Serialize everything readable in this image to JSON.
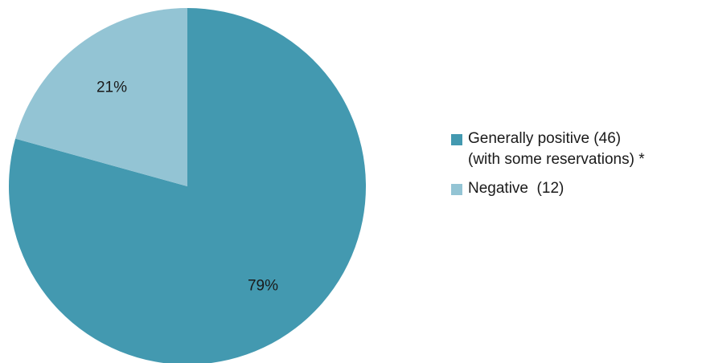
{
  "chart_data": {
    "type": "pie",
    "slices": [
      {
        "legend_lines": [
          "Generally positive (46)",
          "(with some reservations) *"
        ],
        "value": 46,
        "percent_label": "79%",
        "color": "#4399b0"
      },
      {
        "legend_lines": [
          "Negative  (12)"
        ],
        "value": 12,
        "percent_label": "21%",
        "color": "#93c4d4"
      }
    ],
    "start": "12 o'clock",
    "direction": "clockwise",
    "legend_position": "right"
  }
}
